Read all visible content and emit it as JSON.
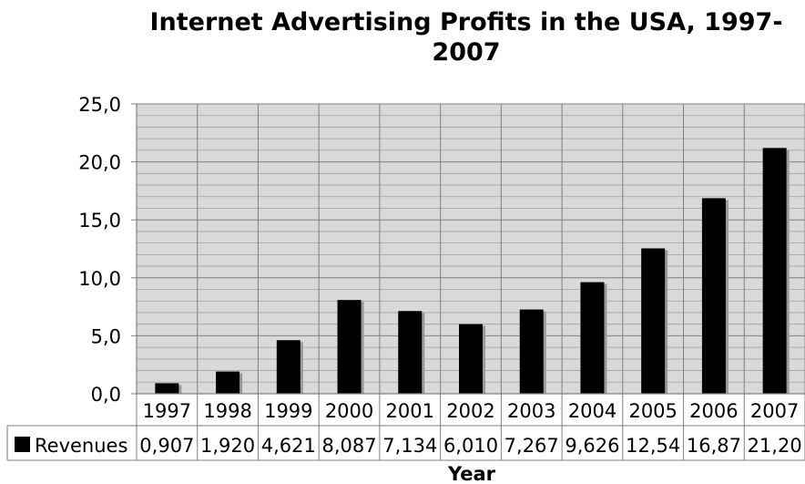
{
  "chart_data": {
    "type": "bar",
    "title_lines": [
      "Internet Advertising Profits in the USA, 1997-",
      "2007"
    ],
    "xlabel": "Year",
    "ylabel": "",
    "categories": [
      "1997",
      "1998",
      "1999",
      "2000",
      "2001",
      "2002",
      "2003",
      "2004",
      "2005",
      "2006",
      "2007"
    ],
    "series": [
      {
        "name": "Revenues",
        "color": "#000000",
        "values": [
          0.907,
          1.92,
          4.621,
          8.087,
          7.134,
          6.01,
          7.267,
          9.626,
          12.54,
          16.87,
          21.2
        ],
        "value_labels": [
          "0,907",
          "1,920",
          "4,621",
          "8,087",
          "7,134",
          "6,010",
          "7,267",
          "9,626",
          "12,54",
          "16,87",
          "21,20"
        ]
      }
    ],
    "ylim": [
      0,
      25
    ],
    "yticks": [
      0,
      5,
      10,
      15,
      20,
      25
    ],
    "ytick_labels": [
      "0,0",
      "5,0",
      "10,0",
      "15,0",
      "20,0",
      "25,0"
    ],
    "grid": true,
    "legend": "data-table-left",
    "plot_background": "#d9d9d9",
    "grid_color": "#a0a0a0"
  }
}
